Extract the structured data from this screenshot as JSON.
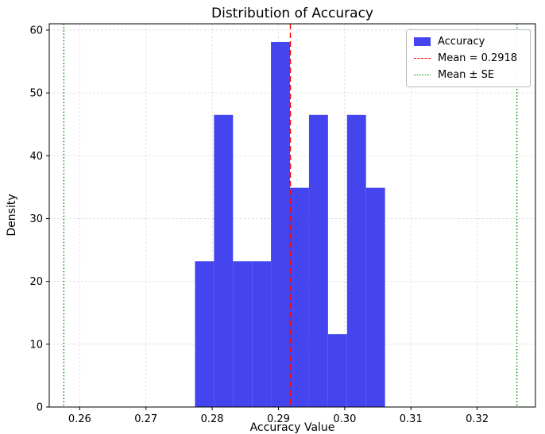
{
  "chart_data": {
    "type": "histogram",
    "title": "Distribution of Accuracy",
    "xlabel": "Accuracy Value",
    "ylabel": "Density",
    "xlim": [
      0.2554,
      0.3288
    ],
    "ylim": [
      0,
      61
    ],
    "xticks": [
      0.26,
      0.27,
      0.28,
      0.29,
      0.3,
      0.31,
      0.32
    ],
    "xtick_labels": [
      "0.26",
      "0.27",
      "0.28",
      "0.29",
      "0.30",
      "0.31",
      "0.32"
    ],
    "yticks": [
      0,
      10,
      20,
      30,
      40,
      50,
      60
    ],
    "ytick_labels": [
      "0",
      "10",
      "20",
      "30",
      "40",
      "50",
      "60"
    ],
    "bin_edges": [
      0.2774,
      0.28027,
      0.28314,
      0.286,
      0.28887,
      0.29174,
      0.29461,
      0.29748,
      0.30035,
      0.30322,
      0.30609
    ],
    "densities": [
      23.2,
      46.5,
      23.2,
      23.2,
      58.1,
      34.9,
      46.5,
      11.6,
      46.5,
      34.9
    ],
    "bar_color": "#4545f0",
    "grid": true,
    "mean": 0.2918,
    "mean_line": {
      "x": 0.2918,
      "color": "#ff0000",
      "dash": "dashed",
      "label": "Mean = 0.2918"
    },
    "se_lines": {
      "x_values": [
        0.2576,
        0.326
      ],
      "color": "#008000",
      "dash": "dotted",
      "label": "Mean ± SE"
    },
    "legend": {
      "position": "upper right",
      "items": [
        {
          "label": "Accuracy",
          "marker": "patch",
          "color": "#4545f0"
        },
        {
          "label": "Mean = 0.2918",
          "marker": "dashed-line",
          "color": "#ff0000"
        },
        {
          "label": "Mean ± SE",
          "marker": "dotted-line",
          "color": "#008000"
        }
      ]
    }
  }
}
